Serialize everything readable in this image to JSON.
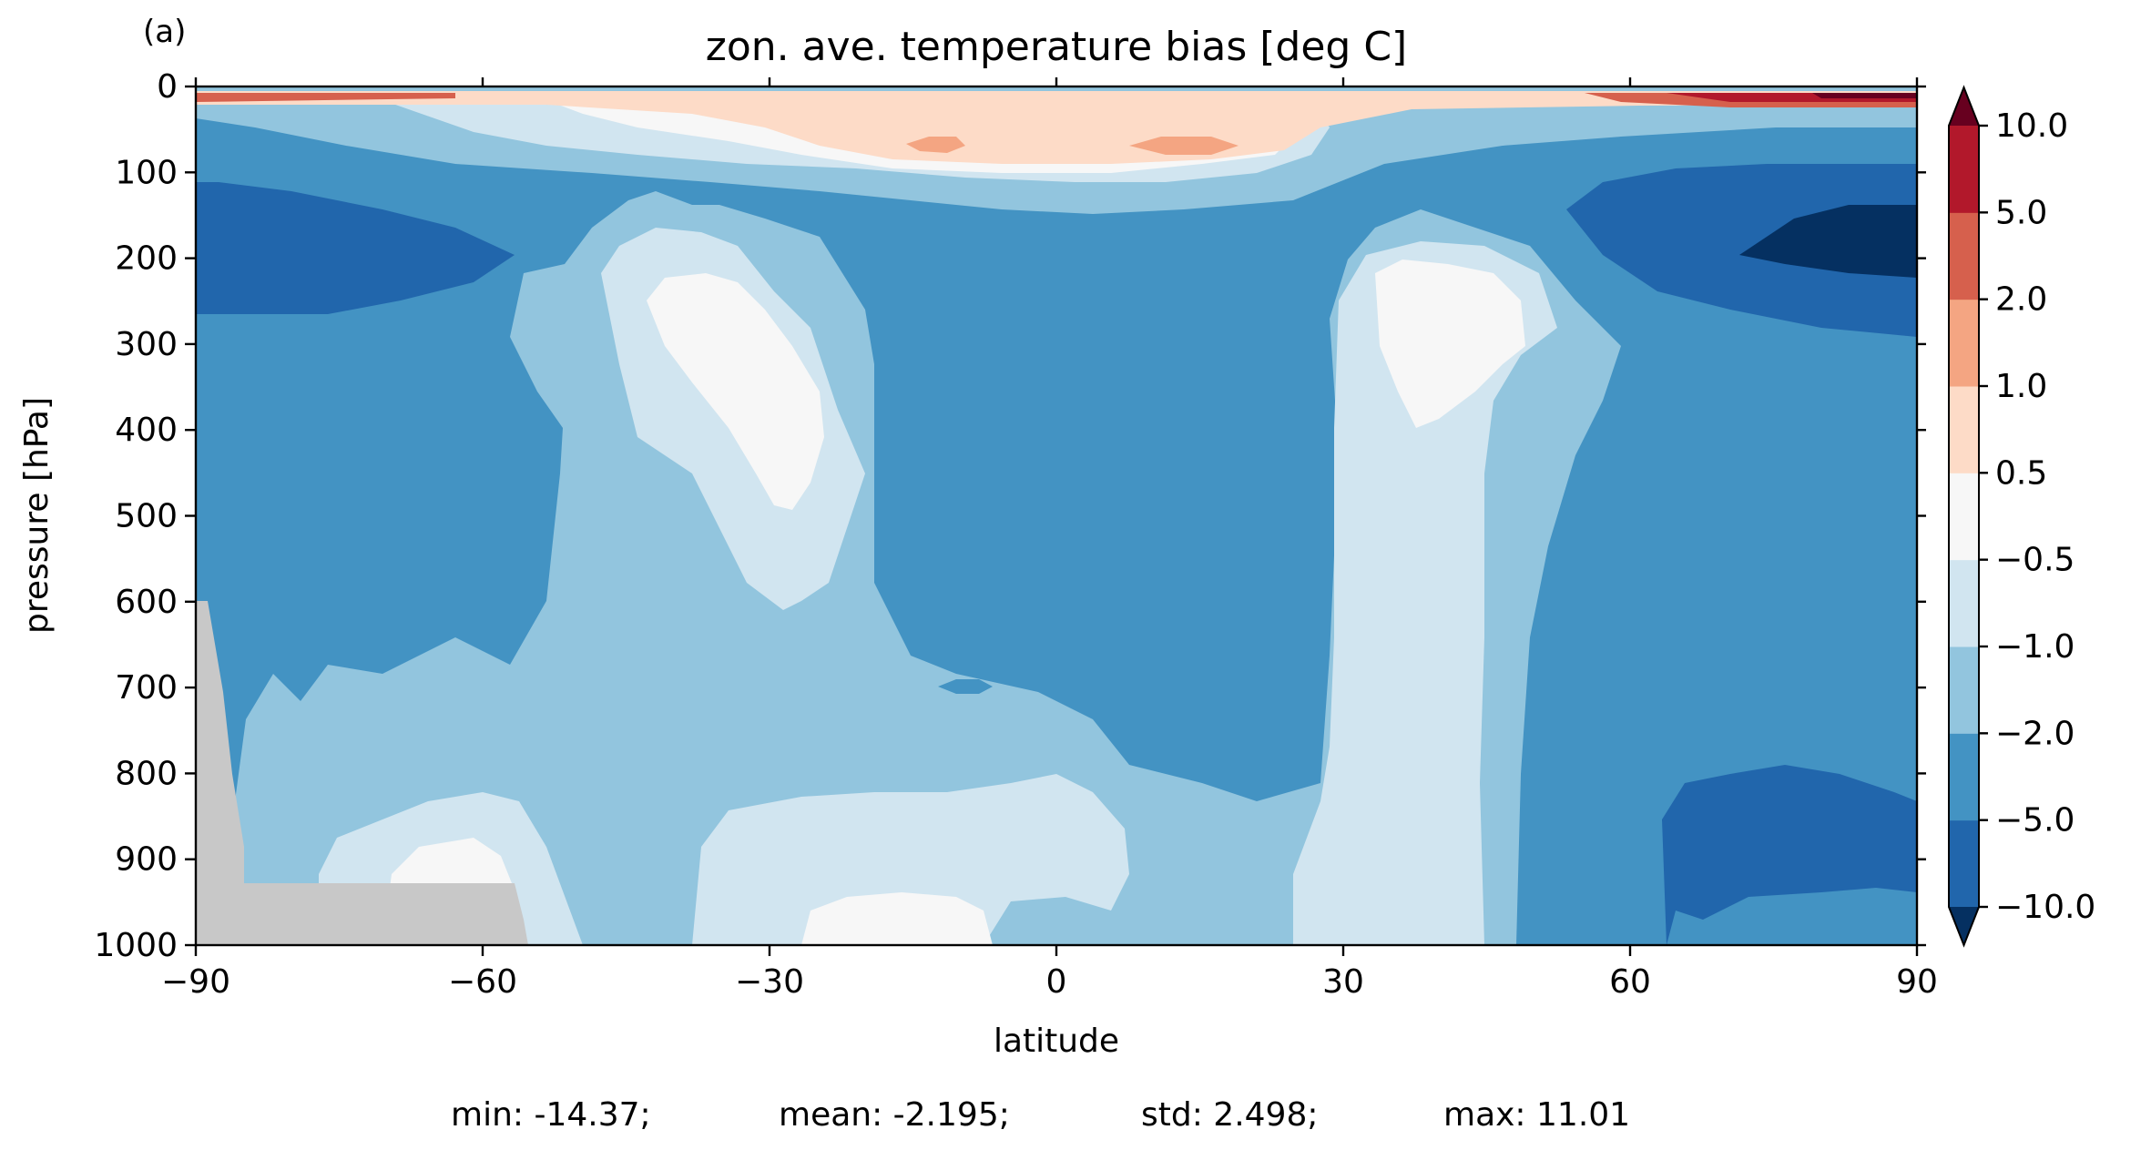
{
  "chart_data": {
    "type": "heatmap",
    "subtype": "filled-contour",
    "panel_label": "(a)",
    "title": "zon. ave. temperature bias [deg C]",
    "xlabel": "latitude",
    "ylabel": "pressure [hPa]",
    "xlim": [
      -90,
      90
    ],
    "ylim": [
      1000,
      0
    ],
    "x_ticks": [
      -90,
      -60,
      -30,
      0,
      30,
      60,
      90
    ],
    "x_tick_labels": [
      "−90",
      "−60",
      "−30",
      "0",
      "30",
      "60",
      "90"
    ],
    "y_ticks": [
      0,
      100,
      200,
      300,
      400,
      500,
      600,
      700,
      800,
      900,
      1000
    ],
    "y_tick_labels": [
      "0",
      "100",
      "200",
      "300",
      "400",
      "500",
      "600",
      "700",
      "800",
      "900",
      "1000"
    ],
    "colorbar": {
      "extend": "both",
      "boundaries": [
        -10.0,
        -5.0,
        -2.0,
        -1.0,
        -0.5,
        0.5,
        1.0,
        2.0,
        5.0,
        10.0
      ],
      "tick_labels": [
        "−10.0",
        "−5.0",
        "−2.0",
        "−1.0",
        "−0.5",
        "0.5",
        "1.0",
        "2.0",
        "5.0",
        "10.0"
      ],
      "colors": [
        "#2166ac",
        "#4393c3",
        "#92c5de",
        "#d1e5f0",
        "#f7f7f7",
        "#fddbc7",
        "#f4a582",
        "#d6604d",
        "#b2182b"
      ],
      "under_color": "#053061",
      "over_color": "#67001f"
    },
    "missing_color": "#c8c8c8",
    "regions": [
      {
        "level": "-5 to -2",
        "description": "background over most of the domain"
      },
      {
        "level": "-10 to -5",
        "description": "southern upper-troposphere minimum near 200 hPa"
      },
      {
        "level": "-10 to -5",
        "description": "northern upper-troposphere minimum near 200 hPa"
      },
      {
        "level": "< -10",
        "description": "northern polar core near 200 hPa"
      },
      {
        "level": "-10 to -5",
        "description": "northern lower-troposphere band near 900 hPa"
      },
      {
        "level": "-2 to -1",
        "description": "tropical mid troposphere"
      },
      {
        "level": "-1 to -0.5",
        "description": "subtropical upper-troposphere maxima at 35S and 35N"
      },
      {
        "level": "-0.5 to 0.5",
        "description": "subtropical cores near 300 hPa"
      },
      {
        "level": "0.5 to 2",
        "description": "stratosphere near 50 hPa over the tropics"
      },
      {
        "level": "> 2",
        "description": "polar stratosphere near 10 hPa"
      }
    ],
    "stats": {
      "min": -14.37,
      "mean": -2.195,
      "std": 2.498,
      "max": 11.01
    }
  },
  "footer": {
    "min_text": "min: -14.37;",
    "mean_text": "mean: -2.195;",
    "std_text": "std: 2.498;",
    "max_text": "max: 11.01"
  }
}
